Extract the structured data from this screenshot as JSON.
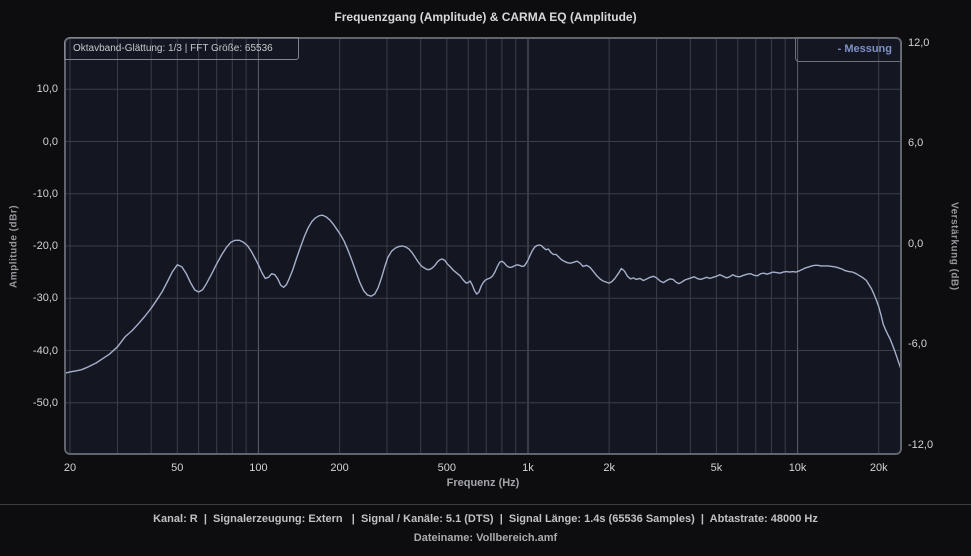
{
  "colors": {
    "page_bg": "#0d0d0f",
    "plot_bg": "#141722",
    "plot_border": "#60646d",
    "grid_minor": "#3a3e48",
    "grid_major": "#5c6069",
    "curve": "#a6afc9",
    "legend_text": "#7e90c8",
    "tick_text": "#d2d3d5",
    "title_text": "#d8d8da"
  },
  "status": {
    "line1": "Kanal: R  |  Signalerzeugung: Extern   |  Signal / Kanäle: 5.1 (DTS)  |  Signal Länge: 1.4s (65536 Samples)  |  Abtastrate: 48000 Hz",
    "line2": "Dateiname: Vollbereich.amf"
  },
  "chart_data": {
    "type": "line",
    "title": "Frequenzgang (Amplitude) & CARMA EQ (Amplitude)",
    "info_box": "Oktavband-Glättung: 1/3 | FFT Größe: 65536",
    "legend": {
      "text": "- Messung"
    },
    "x_axis": {
      "label": "Frequenz (Hz)",
      "scale": "log",
      "min": 19,
      "max": 24400,
      "ticks": [
        {
          "f": 20,
          "label": "20"
        },
        {
          "f": 50,
          "label": "50"
        },
        {
          "f": 100,
          "label": "100"
        },
        {
          "f": 200,
          "label": "200"
        },
        {
          "f": 500,
          "label": "500"
        },
        {
          "f": 1000,
          "label": "1k"
        },
        {
          "f": 2000,
          "label": "2k"
        },
        {
          "f": 5000,
          "label": "5k"
        },
        {
          "f": 10000,
          "label": "10k"
        },
        {
          "f": 20000,
          "label": "20k"
        }
      ],
      "gridlines": [
        20,
        30,
        40,
        50,
        60,
        70,
        80,
        90,
        100,
        200,
        300,
        400,
        500,
        600,
        700,
        800,
        900,
        1000,
        2000,
        3000,
        4000,
        5000,
        6000,
        7000,
        8000,
        9000,
        10000,
        20000
      ],
      "decade_gridlines": [
        100,
        1000,
        10000
      ]
    },
    "y_left": {
      "label": "Amplitude (dBr)",
      "min": -60,
      "max": 20,
      "ticks": [
        {
          "value": 10,
          "label": "10,0"
        },
        {
          "value": 0,
          "label": "0,0"
        },
        {
          "value": -10,
          "label": "-10,0"
        },
        {
          "value": -20,
          "label": "-20,0"
        },
        {
          "value": -30,
          "label": "-30,0"
        },
        {
          "value": -40,
          "label": "-40,0"
        },
        {
          "value": -50,
          "label": "-50,0"
        }
      ],
      "gridline_values": [
        10,
        0,
        -10,
        -20,
        -30,
        -40,
        -50
      ]
    },
    "y_right": {
      "label": "Verstärkung (dB)",
      "min": -12,
      "max": 12,
      "ticks": [
        {
          "value": 12,
          "label": "12,0"
        },
        {
          "value": 6,
          "label": "6,0"
        },
        {
          "value": 0,
          "label": "0,0"
        },
        {
          "value": -6,
          "label": "-6,0"
        },
        {
          "value": -12,
          "label": "-12,0"
        }
      ]
    },
    "series": [
      {
        "name": "Messung",
        "color": "#a6afc9",
        "points": [
          [
            19,
            -44.4
          ],
          [
            20,
            -44.1
          ],
          [
            21,
            -43.9
          ],
          [
            22,
            -43.7
          ],
          [
            23,
            -43.3
          ],
          [
            25,
            -42.4
          ],
          [
            26,
            -41.8
          ],
          [
            28,
            -40.7
          ],
          [
            30,
            -39.3
          ],
          [
            32,
            -37.4
          ],
          [
            34,
            -36.2
          ],
          [
            36,
            -34.8
          ],
          [
            38,
            -33.4
          ],
          [
            40,
            -31.9
          ],
          [
            42,
            -30.3
          ],
          [
            44,
            -28.7
          ],
          [
            46,
            -26.8
          ],
          [
            48,
            -24.9
          ],
          [
            50,
            -23.6
          ],
          [
            52,
            -24.0
          ],
          [
            54,
            -25.3
          ],
          [
            56,
            -27.0
          ],
          [
            58,
            -28.4
          ],
          [
            60,
            -28.8
          ],
          [
            62,
            -28.4
          ],
          [
            64,
            -27.3
          ],
          [
            67,
            -25.4
          ],
          [
            70,
            -23.4
          ],
          [
            73,
            -21.7
          ],
          [
            76,
            -20.3
          ],
          [
            79,
            -19.3
          ],
          [
            82,
            -18.9
          ],
          [
            85,
            -18.9
          ],
          [
            88,
            -19.3
          ],
          [
            91,
            -19.9
          ],
          [
            94,
            -21.0
          ],
          [
            97,
            -22.3
          ],
          [
            100,
            -23.6
          ],
          [
            103,
            -25.1
          ],
          [
            106,
            -26.2
          ],
          [
            109,
            -26.0
          ],
          [
            112,
            -25.3
          ],
          [
            115,
            -25.5
          ],
          [
            118,
            -26.3
          ],
          [
            121,
            -27.5
          ],
          [
            124,
            -27.9
          ],
          [
            127,
            -27.4
          ],
          [
            130,
            -26.3
          ],
          [
            134,
            -24.6
          ],
          [
            138,
            -22.6
          ],
          [
            143,
            -20.3
          ],
          [
            148,
            -18.2
          ],
          [
            153,
            -16.5
          ],
          [
            158,
            -15.3
          ],
          [
            163,
            -14.6
          ],
          [
            168,
            -14.2
          ],
          [
            173,
            -14.1
          ],
          [
            178,
            -14.4
          ],
          [
            184,
            -15.0
          ],
          [
            190,
            -15.9
          ],
          [
            196,
            -16.9
          ],
          [
            202,
            -17.9
          ],
          [
            208,
            -19.1
          ],
          [
            215,
            -20.8
          ],
          [
            222,
            -22.7
          ],
          [
            230,
            -24.9
          ],
          [
            238,
            -27.0
          ],
          [
            246,
            -28.6
          ],
          [
            254,
            -29.4
          ],
          [
            262,
            -29.6
          ],
          [
            270,
            -29.2
          ],
          [
            278,
            -28.0
          ],
          [
            286,
            -26.1
          ],
          [
            294,
            -24.0
          ],
          [
            302,
            -22.2
          ],
          [
            312,
            -21.0
          ],
          [
            322,
            -20.4
          ],
          [
            332,
            -20.1
          ],
          [
            342,
            -20.0
          ],
          [
            352,
            -20.2
          ],
          [
            362,
            -20.6
          ],
          [
            372,
            -21.3
          ],
          [
            382,
            -22.2
          ],
          [
            392,
            -23.1
          ],
          [
            402,
            -23.8
          ],
          [
            412,
            -24.2
          ],
          [
            422,
            -24.5
          ],
          [
            432,
            -24.5
          ],
          [
            442,
            -24.2
          ],
          [
            452,
            -23.7
          ],
          [
            462,
            -23.0
          ],
          [
            472,
            -22.6
          ],
          [
            482,
            -22.5
          ],
          [
            492,
            -22.8
          ],
          [
            502,
            -23.4
          ],
          [
            515,
            -24.0
          ],
          [
            530,
            -24.7
          ],
          [
            545,
            -25.2
          ],
          [
            560,
            -25.7
          ],
          [
            575,
            -26.5
          ],
          [
            590,
            -27.1
          ],
          [
            600,
            -27.0
          ],
          [
            610,
            -26.7
          ],
          [
            622,
            -27.5
          ],
          [
            634,
            -28.6
          ],
          [
            646,
            -29.2
          ],
          [
            658,
            -28.8
          ],
          [
            670,
            -27.7
          ],
          [
            682,
            -27.0
          ],
          [
            695,
            -26.5
          ],
          [
            710,
            -26.3
          ],
          [
            725,
            -26.1
          ],
          [
            740,
            -25.7
          ],
          [
            755,
            -24.9
          ],
          [
            770,
            -23.9
          ],
          [
            785,
            -23.1
          ],
          [
            800,
            -22.9
          ],
          [
            815,
            -23.2
          ],
          [
            830,
            -23.7
          ],
          [
            845,
            -24.0
          ],
          [
            860,
            -24.1
          ],
          [
            875,
            -24.0
          ],
          [
            890,
            -23.8
          ],
          [
            910,
            -23.6
          ],
          [
            930,
            -23.7
          ],
          [
            950,
            -23.9
          ],
          [
            970,
            -23.8
          ],
          [
            985,
            -23.3
          ],
          [
            1000,
            -22.7
          ],
          [
            1020,
            -21.7
          ],
          [
            1040,
            -20.8
          ],
          [
            1060,
            -20.2
          ],
          [
            1080,
            -19.9
          ],
          [
            1100,
            -19.8
          ],
          [
            1120,
            -19.9
          ],
          [
            1140,
            -20.3
          ],
          [
            1165,
            -20.7
          ],
          [
            1190,
            -20.6
          ],
          [
            1215,
            -21.2
          ],
          [
            1240,
            -21.6
          ],
          [
            1270,
            -21.6
          ],
          [
            1300,
            -22.1
          ],
          [
            1330,
            -22.6
          ],
          [
            1360,
            -22.9
          ],
          [
            1400,
            -23.2
          ],
          [
            1440,
            -23.3
          ],
          [
            1480,
            -23.1
          ],
          [
            1520,
            -22.9
          ],
          [
            1560,
            -23.3
          ],
          [
            1600,
            -23.9
          ],
          [
            1650,
            -23.7
          ],
          [
            1700,
            -24.1
          ],
          [
            1750,
            -24.9
          ],
          [
            1800,
            -25.7
          ],
          [
            1850,
            -26.3
          ],
          [
            1900,
            -26.7
          ],
          [
            1950,
            -26.9
          ],
          [
            2000,
            -27.1
          ],
          [
            2050,
            -26.8
          ],
          [
            2100,
            -26.2
          ],
          [
            2160,
            -25.3
          ],
          [
            2220,
            -24.3
          ],
          [
            2280,
            -24.8
          ],
          [
            2340,
            -25.8
          ],
          [
            2400,
            -26.3
          ],
          [
            2460,
            -26.1
          ],
          [
            2520,
            -26.4
          ],
          [
            2600,
            -26.2
          ],
          [
            2680,
            -26.6
          ],
          [
            2760,
            -26.3
          ],
          [
            2840,
            -26.0
          ],
          [
            2920,
            -25.8
          ],
          [
            3000,
            -26.1
          ],
          [
            3090,
            -26.7
          ],
          [
            3180,
            -27.0
          ],
          [
            3270,
            -26.6
          ],
          [
            3360,
            -26.3
          ],
          [
            3450,
            -26.4
          ],
          [
            3540,
            -26.9
          ],
          [
            3630,
            -27.2
          ],
          [
            3720,
            -26.9
          ],
          [
            3820,
            -26.5
          ],
          [
            3920,
            -26.3
          ],
          [
            4020,
            -26.1
          ],
          [
            4130,
            -25.9
          ],
          [
            4240,
            -26.2
          ],
          [
            4360,
            -26.4
          ],
          [
            4480,
            -26.2
          ],
          [
            4600,
            -26.0
          ],
          [
            4730,
            -26.2
          ],
          [
            4860,
            -26.0
          ],
          [
            5000,
            -25.8
          ],
          [
            5150,
            -25.5
          ],
          [
            5300,
            -25.8
          ],
          [
            5450,
            -26.1
          ],
          [
            5600,
            -25.9
          ],
          [
            5750,
            -25.5
          ],
          [
            5900,
            -25.8
          ],
          [
            6100,
            -25.9
          ],
          [
            6300,
            -25.6
          ],
          [
            6500,
            -25.4
          ],
          [
            6700,
            -25.3
          ],
          [
            6900,
            -25.6
          ],
          [
            7100,
            -25.7
          ],
          [
            7300,
            -25.3
          ],
          [
            7500,
            -25.2
          ],
          [
            7700,
            -25.4
          ],
          [
            7900,
            -25.2
          ],
          [
            8100,
            -25.0
          ],
          [
            8350,
            -25.1
          ],
          [
            8600,
            -25.2
          ],
          [
            8850,
            -25.0
          ],
          [
            9100,
            -24.9
          ],
          [
            9350,
            -25.0
          ],
          [
            9600,
            -24.9
          ],
          [
            9850,
            -25.0
          ],
          [
            10100,
            -24.8
          ],
          [
            10400,
            -24.5
          ],
          [
            10700,
            -24.2
          ],
          [
            11000,
            -24.0
          ],
          [
            11300,
            -23.8
          ],
          [
            11600,
            -23.7
          ],
          [
            11900,
            -23.7
          ],
          [
            12200,
            -23.8
          ],
          [
            12600,
            -23.8
          ],
          [
            13000,
            -23.8
          ],
          [
            13400,
            -23.9
          ],
          [
            13800,
            -24.0
          ],
          [
            14200,
            -24.2
          ],
          [
            14600,
            -24.4
          ],
          [
            15000,
            -24.7
          ],
          [
            15500,
            -24.9
          ],
          [
            16000,
            -25.0
          ],
          [
            16500,
            -25.3
          ],
          [
            17000,
            -25.7
          ],
          [
            17500,
            -26.1
          ],
          [
            18000,
            -26.6
          ],
          [
            18400,
            -27.4
          ],
          [
            18800,
            -28.2
          ],
          [
            19200,
            -29.2
          ],
          [
            19600,
            -30.4
          ],
          [
            20000,
            -31.6
          ],
          [
            20400,
            -33.2
          ],
          [
            20800,
            -35.0
          ],
          [
            21200,
            -36.0
          ],
          [
            21600,
            -36.9
          ],
          [
            22000,
            -37.7
          ],
          [
            22400,
            -38.7
          ],
          [
            22900,
            -40.0
          ],
          [
            23400,
            -41.4
          ],
          [
            23900,
            -42.8
          ],
          [
            24300,
            -43.9
          ]
        ]
      }
    ]
  }
}
